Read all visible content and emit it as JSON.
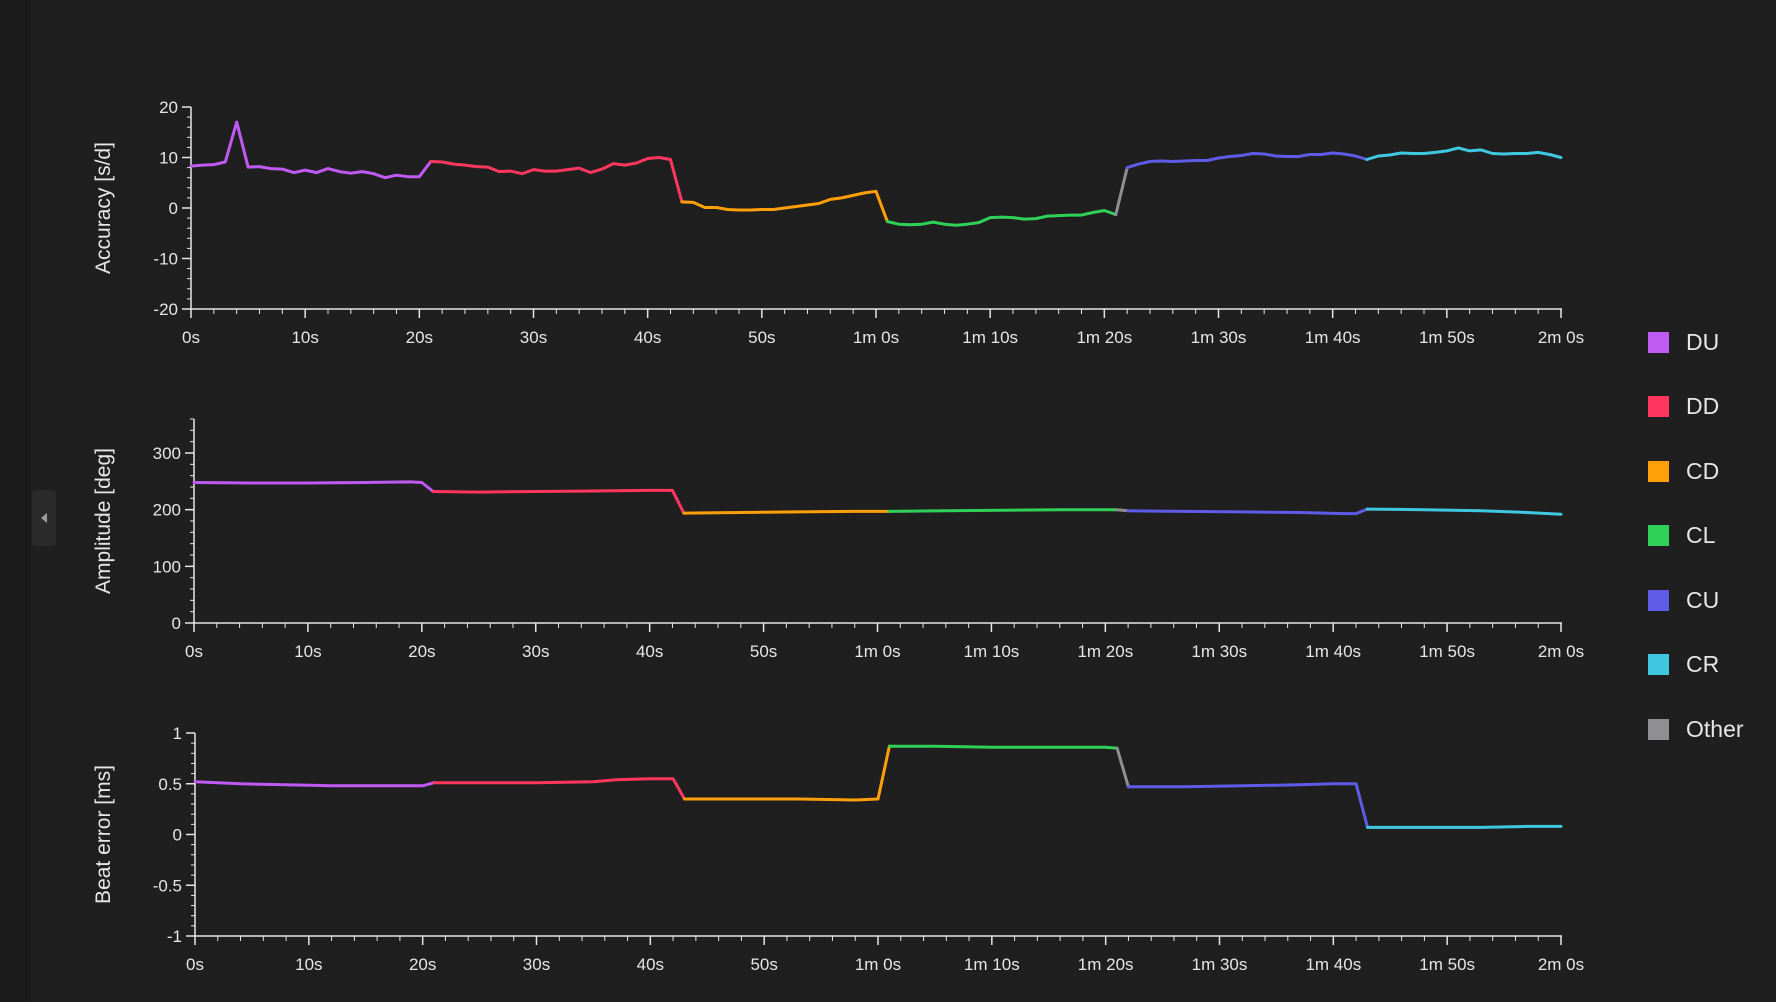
{
  "sidebar": {
    "collapse_icon": "chevron-left-icon"
  },
  "legend": {
    "items": [
      {
        "label": "DU",
        "color": "#bf5af2"
      },
      {
        "label": "DD",
        "color": "#ff375f"
      },
      {
        "label": "CD",
        "color": "#ff9f0a"
      },
      {
        "label": "CL",
        "color": "#30d158"
      },
      {
        "label": "CU",
        "color": "#5e5ce6"
      },
      {
        "label": "CR",
        "color": "#40c8e0"
      },
      {
        "label": "Other",
        "color": "#8e8e93"
      }
    ]
  },
  "chart_data": [
    {
      "type": "line",
      "ylabel": "Accuracy [s/d]",
      "ylim": [
        -20,
        20
      ],
      "yticks": [
        "-20",
        "-10",
        "0",
        "10",
        "20"
      ],
      "xlim": [
        0,
        121
      ],
      "xticks": [
        "0s",
        "10s",
        "20s",
        "30s",
        "40s",
        "50s",
        "1m 0s",
        "1m 10s",
        "1m 20s",
        "1m 30s",
        "1m 40s",
        "1m 50s",
        "2m 0s"
      ],
      "segments": [
        {
          "group": "DU",
          "points": [
            [
              0,
              8.3
            ],
            [
              1,
              8.5
            ],
            [
              2,
              8.6
            ],
            [
              3,
              9.1
            ],
            [
              4,
              17
            ],
            [
              5,
              8.1
            ],
            [
              6,
              8.2
            ],
            [
              7,
              7.8
            ],
            [
              8,
              7.7
            ],
            [
              9,
              7
            ],
            [
              10,
              7.5
            ],
            [
              11,
              7
            ],
            [
              12,
              7.8
            ],
            [
              13,
              7.2
            ],
            [
              14,
              6.9
            ],
            [
              15,
              7.2
            ],
            [
              16,
              6.8
            ],
            [
              17,
              6
            ],
            [
              18,
              6.5
            ],
            [
              19,
              6.2
            ],
            [
              20,
              6.2
            ],
            [
              21,
              9.2
            ]
          ]
        },
        {
          "group": "DD",
          "points": [
            [
              21,
              9.2
            ],
            [
              22,
              9.1
            ],
            [
              23,
              8.7
            ],
            [
              24,
              8.5
            ],
            [
              25,
              8.2
            ],
            [
              26,
              8.1
            ],
            [
              27,
              7.2
            ],
            [
              28,
              7.3
            ],
            [
              29,
              6.8
            ],
            [
              30,
              7.6
            ],
            [
              31,
              7.3
            ],
            [
              32,
              7.3
            ],
            [
              33,
              7.6
            ],
            [
              34,
              7.9
            ],
            [
              35,
              7
            ],
            [
              36,
              7.7
            ],
            [
              37,
              8.8
            ],
            [
              38,
              8.5
            ],
            [
              39,
              8.9
            ],
            [
              40,
              9.8
            ],
            [
              41,
              10
            ],
            [
              42,
              9.6
            ],
            [
              43,
              1.2
            ]
          ]
        },
        {
          "group": "CD",
          "points": [
            [
              43,
              1.2
            ],
            [
              44,
              1.1
            ],
            [
              45,
              0.1
            ],
            [
              46,
              0.1
            ],
            [
              47,
              -0.3
            ],
            [
              48,
              -0.4
            ],
            [
              49,
              -0.4
            ],
            [
              50,
              -0.3
            ],
            [
              51,
              -0.3
            ],
            [
              52,
              0
            ],
            [
              53,
              0.3
            ],
            [
              54,
              0.6
            ],
            [
              55,
              0.9
            ],
            [
              56,
              1.7
            ],
            [
              57,
              2
            ],
            [
              58,
              2.5
            ],
            [
              59,
              3
            ],
            [
              60,
              3.3
            ],
            [
              61,
              -2.7
            ]
          ]
        },
        {
          "group": "CL",
          "points": [
            [
              61,
              -2.7
            ],
            [
              62,
              -3.2
            ],
            [
              63,
              -3.3
            ],
            [
              64,
              -3.2
            ],
            [
              65,
              -2.8
            ],
            [
              66,
              -3.2
            ],
            [
              67,
              -3.4
            ],
            [
              68,
              -3.2
            ],
            [
              69,
              -2.9
            ],
            [
              70,
              -1.9
            ],
            [
              71,
              -1.8
            ],
            [
              72,
              -1.9
            ],
            [
              73,
              -2.2
            ],
            [
              74,
              -2.1
            ],
            [
              75,
              -1.6
            ],
            [
              76,
              -1.5
            ],
            [
              77,
              -1.4
            ],
            [
              78,
              -1.4
            ],
            [
              79,
              -0.9
            ],
            [
              80,
              -0.5
            ],
            [
              81,
              -1.3
            ]
          ]
        },
        {
          "group": "Other",
          "points": [
            [
              81,
              -1.3
            ],
            [
              82,
              8
            ]
          ]
        },
        {
          "group": "CU",
          "points": [
            [
              82,
              8
            ],
            [
              83,
              8.7
            ],
            [
              84,
              9.2
            ],
            [
              85,
              9.3
            ],
            [
              86,
              9.2
            ],
            [
              87,
              9.3
            ],
            [
              88,
              9.4
            ],
            [
              89,
              9.4
            ],
            [
              90,
              9.9
            ],
            [
              91,
              10.2
            ],
            [
              92,
              10.4
            ],
            [
              93,
              10.8
            ],
            [
              94,
              10.7
            ],
            [
              95,
              10.3
            ],
            [
              96,
              10.2
            ],
            [
              97,
              10.2
            ],
            [
              98,
              10.6
            ],
            [
              99,
              10.6
            ],
            [
              100,
              10.9
            ],
            [
              101,
              10.7
            ],
            [
              102,
              10.3
            ],
            [
              103,
              9.6
            ]
          ]
        },
        {
          "group": "CR",
          "points": [
            [
              103,
              9.6
            ],
            [
              104,
              10.3
            ],
            [
              105,
              10.5
            ],
            [
              106,
              10.9
            ],
            [
              107,
              10.8
            ],
            [
              108,
              10.8
            ],
            [
              109,
              11
            ],
            [
              110,
              11.3
            ],
            [
              111,
              11.9
            ],
            [
              112,
              11.3
            ],
            [
              113,
              11.5
            ],
            [
              114,
              10.8
            ],
            [
              115,
              10.7
            ],
            [
              116,
              10.8
            ],
            [
              117,
              10.8
            ],
            [
              118,
              11
            ],
            [
              119,
              10.6
            ],
            [
              120,
              10
            ]
          ]
        }
      ]
    },
    {
      "type": "line",
      "ylabel": "Amplitude [deg]",
      "ylim": [
        0,
        360
      ],
      "yticks": [
        "0",
        "100",
        "200",
        "300"
      ],
      "xlim": [
        0,
        121
      ],
      "xticks": [
        "0s",
        "10s",
        "20s",
        "30s",
        "40s",
        "50s",
        "1m 0s",
        "1m 10s",
        "1m 20s",
        "1m 30s",
        "1m 40s",
        "1m 50s",
        "2m 0s"
      ],
      "segments": [
        {
          "group": "DU",
          "points": [
            [
              0,
              248
            ],
            [
              5,
              247
            ],
            [
              10,
              247
            ],
            [
              15,
              248
            ],
            [
              19,
              249
            ],
            [
              20,
              248
            ],
            [
              21,
              232
            ]
          ]
        },
        {
          "group": "DD",
          "points": [
            [
              21,
              232
            ],
            [
              25,
              231
            ],
            [
              30,
              232
            ],
            [
              35,
              233
            ],
            [
              40,
              234
            ],
            [
              42,
              234
            ],
            [
              43,
              194
            ]
          ]
        },
        {
          "group": "CD",
          "points": [
            [
              43,
              194
            ],
            [
              48,
              195
            ],
            [
              53,
              196
            ],
            [
              58,
              197
            ],
            [
              61,
              197
            ]
          ]
        },
        {
          "group": "CL",
          "points": [
            [
              61,
              197
            ],
            [
              66,
              198
            ],
            [
              71,
              199
            ],
            [
              76,
              200
            ],
            [
              81,
              200
            ]
          ]
        },
        {
          "group": "Other",
          "points": [
            [
              81,
              200
            ],
            [
              82,
              198
            ]
          ]
        },
        {
          "group": "CU",
          "points": [
            [
              82,
              198
            ],
            [
              87,
              197
            ],
            [
              92,
              196
            ],
            [
              97,
              195
            ],
            [
              101,
              193
            ],
            [
              102,
              193
            ],
            [
              103,
              201
            ]
          ]
        },
        {
          "group": "CR",
          "points": [
            [
              103,
              201
            ],
            [
              108,
              200
            ],
            [
              113,
              198
            ],
            [
              117,
              195
            ],
            [
              120,
              192
            ]
          ]
        }
      ]
    },
    {
      "type": "line",
      "ylabel": "Beat error [ms]",
      "ylim": [
        -1,
        1
      ],
      "yticks": [
        "-1",
        "-0.5",
        "0",
        "0.5",
        "1"
      ],
      "xlim": [
        0,
        121
      ],
      "xticks": [
        "0s",
        "10s",
        "20s",
        "30s",
        "40s",
        "50s",
        "1m 0s",
        "1m 10s",
        "1m 20s",
        "1m 30s",
        "1m 40s",
        "1m 50s",
        "2m 0s"
      ],
      "segments": [
        {
          "group": "DU",
          "points": [
            [
              0,
              0.52
            ],
            [
              2,
              0.51
            ],
            [
              4,
              0.5
            ],
            [
              8,
              0.49
            ],
            [
              12,
              0.48
            ],
            [
              16,
              0.48
            ],
            [
              20,
              0.48
            ],
            [
              21,
              0.51
            ]
          ]
        },
        {
          "group": "DD",
          "points": [
            [
              21,
              0.51
            ],
            [
              25,
              0.51
            ],
            [
              30,
              0.51
            ],
            [
              35,
              0.52
            ],
            [
              37,
              0.54
            ],
            [
              40,
              0.55
            ],
            [
              42,
              0.55
            ],
            [
              43,
              0.35
            ]
          ]
        },
        {
          "group": "CD",
          "points": [
            [
              43,
              0.35
            ],
            [
              48,
              0.35
            ],
            [
              53,
              0.35
            ],
            [
              58,
              0.34
            ],
            [
              60,
              0.35
            ],
            [
              61,
              0.87
            ]
          ]
        },
        {
          "group": "CL",
          "points": [
            [
              61,
              0.87
            ],
            [
              65,
              0.87
            ],
            [
              70,
              0.86
            ],
            [
              75,
              0.86
            ],
            [
              80,
              0.86
            ],
            [
              81,
              0.85
            ]
          ]
        },
        {
          "group": "Other",
          "points": [
            [
              81,
              0.85
            ],
            [
              82,
              0.47
            ]
          ]
        },
        {
          "group": "CU",
          "points": [
            [
              82,
              0.47
            ],
            [
              87,
              0.47
            ],
            [
              92,
              0.48
            ],
            [
              97,
              0.49
            ],
            [
              100,
              0.5
            ],
            [
              102,
              0.5
            ],
            [
              103,
              0.07
            ]
          ]
        },
        {
          "group": "CR",
          "points": [
            [
              103,
              0.07
            ],
            [
              108,
              0.07
            ],
            [
              113,
              0.07
            ],
            [
              117,
              0.08
            ],
            [
              120,
              0.08
            ]
          ]
        }
      ]
    }
  ]
}
